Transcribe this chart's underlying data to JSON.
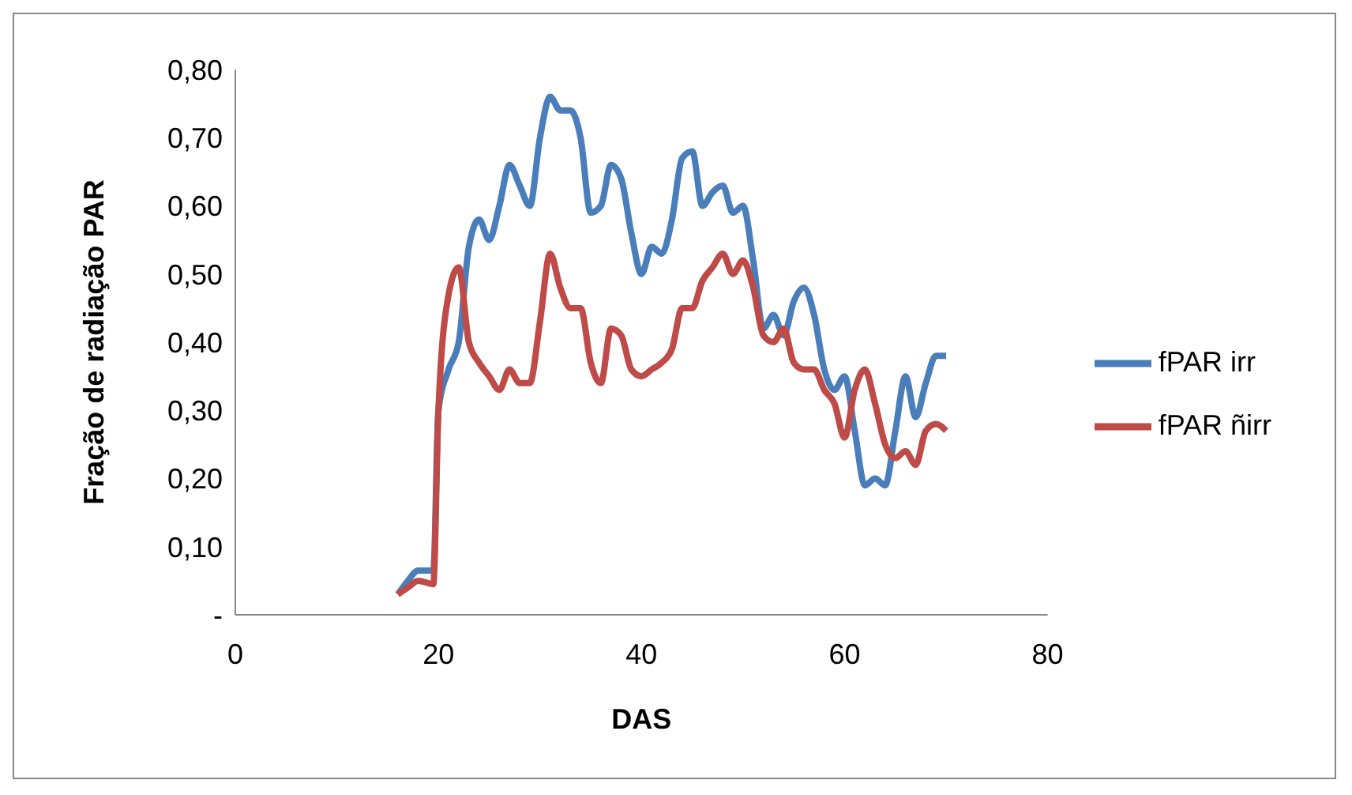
{
  "chart_data": {
    "type": "line",
    "xlabel": "DAS",
    "ylabel": "Fração de radiação PAR",
    "xlim": [
      0,
      80
    ],
    "xticks": [
      0,
      20,
      40,
      60,
      80
    ],
    "ylim": [
      0,
      0.8
    ],
    "yticks": [
      {
        "value": 0,
        "label": "-"
      },
      {
        "value": 0.1,
        "label": "0,10"
      },
      {
        "value": 0.2,
        "label": "0,20"
      },
      {
        "value": 0.3,
        "label": "0,30"
      },
      {
        "value": 0.4,
        "label": "0,40"
      },
      {
        "value": 0.5,
        "label": "0,50"
      },
      {
        "value": 0.6,
        "label": "0,60"
      },
      {
        "value": 0.7,
        "label": "0,70"
      },
      {
        "value": 0.8,
        "label": "0,80"
      }
    ],
    "grid": false,
    "legend": "right",
    "marker": "none",
    "line_style": "solid",
    "series": [
      {
        "name": "fPAR irr",
        "color": "#4a7ebb",
        "x": [
          16,
          17,
          18,
          19.5,
          20,
          21,
          22,
          23,
          24,
          25,
          26,
          27,
          28,
          29,
          30,
          31,
          32,
          33,
          34,
          35,
          36,
          37,
          38,
          39,
          40,
          41,
          42,
          43,
          44,
          45,
          46,
          47,
          48,
          49,
          50,
          51,
          52,
          53,
          54,
          55,
          56,
          57,
          58,
          59,
          60,
          61,
          62,
          63,
          64,
          65,
          66,
          67,
          68,
          69,
          70
        ],
        "values": [
          0.03,
          0.05,
          0.065,
          0.065,
          0.3,
          0.36,
          0.4,
          0.54,
          0.58,
          0.55,
          0.6,
          0.66,
          0.63,
          0.6,
          0.7,
          0.76,
          0.74,
          0.74,
          0.7,
          0.59,
          0.6,
          0.66,
          0.64,
          0.56,
          0.5,
          0.54,
          0.53,
          0.58,
          0.67,
          0.68,
          0.6,
          0.62,
          0.63,
          0.59,
          0.6,
          0.52,
          0.42,
          0.44,
          0.41,
          0.46,
          0.48,
          0.44,
          0.36,
          0.33,
          0.35,
          0.27,
          0.19,
          0.2,
          0.19,
          0.27,
          0.35,
          0.29,
          0.34,
          0.38,
          0.38
        ]
      },
      {
        "name": "fPAR ñirr",
        "color": "#be4b48",
        "x": [
          16,
          17,
          18,
          19.5,
          20,
          21,
          22,
          23,
          24,
          25,
          26,
          27,
          28,
          29,
          30,
          31,
          32,
          33,
          34,
          35,
          36,
          37,
          38,
          39,
          40,
          41,
          42,
          43,
          44,
          45,
          46,
          47,
          48,
          49,
          50,
          51,
          52,
          53,
          54,
          55,
          56,
          57,
          58,
          59,
          60,
          61,
          62,
          63,
          64,
          65,
          66,
          67,
          68,
          69,
          70
        ],
        "values": [
          0.03,
          0.04,
          0.05,
          0.045,
          0.3,
          0.47,
          0.51,
          0.4,
          0.37,
          0.35,
          0.33,
          0.36,
          0.34,
          0.34,
          0.43,
          0.53,
          0.48,
          0.45,
          0.45,
          0.37,
          0.34,
          0.42,
          0.41,
          0.36,
          0.35,
          0.36,
          0.37,
          0.39,
          0.45,
          0.45,
          0.49,
          0.51,
          0.53,
          0.5,
          0.52,
          0.48,
          0.41,
          0.4,
          0.42,
          0.37,
          0.36,
          0.36,
          0.33,
          0.31,
          0.26,
          0.33,
          0.36,
          0.31,
          0.25,
          0.23,
          0.24,
          0.22,
          0.27,
          0.28,
          0.27
        ]
      }
    ]
  }
}
